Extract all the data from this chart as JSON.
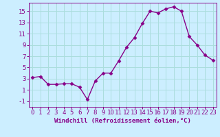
{
  "x": [
    0,
    1,
    2,
    3,
    4,
    5,
    6,
    7,
    8,
    9,
    10,
    11,
    12,
    13,
    14,
    15,
    16,
    17,
    18,
    19,
    20,
    21,
    22,
    23
  ],
  "y": [
    3.2,
    3.4,
    2.0,
    2.0,
    2.1,
    2.1,
    1.5,
    -0.7,
    2.6,
    4.0,
    4.0,
    6.2,
    8.6,
    10.3,
    12.8,
    15.0,
    14.7,
    15.4,
    15.8,
    15.0,
    10.5,
    9.0,
    7.2,
    6.3
  ],
  "line_color": "#880088",
  "marker": "D",
  "marker_size": 2.5,
  "line_width": 1.0,
  "bg_color": "#cceeff",
  "grid_color": "#aadddd",
  "xlabel": "Windchill (Refroidissement éolien,°C)",
  "xlabel_fontsize": 6.5,
  "tick_fontsize": 6.5,
  "xlim": [
    -0.5,
    23.5
  ],
  "ylim": [
    -2,
    16.5
  ],
  "yticks": [
    -1,
    1,
    3,
    5,
    7,
    9,
    11,
    13,
    15
  ],
  "xticks": [
    0,
    1,
    2,
    3,
    4,
    5,
    6,
    7,
    8,
    9,
    10,
    11,
    12,
    13,
    14,
    15,
    16,
    17,
    18,
    19,
    20,
    21,
    22,
    23
  ]
}
